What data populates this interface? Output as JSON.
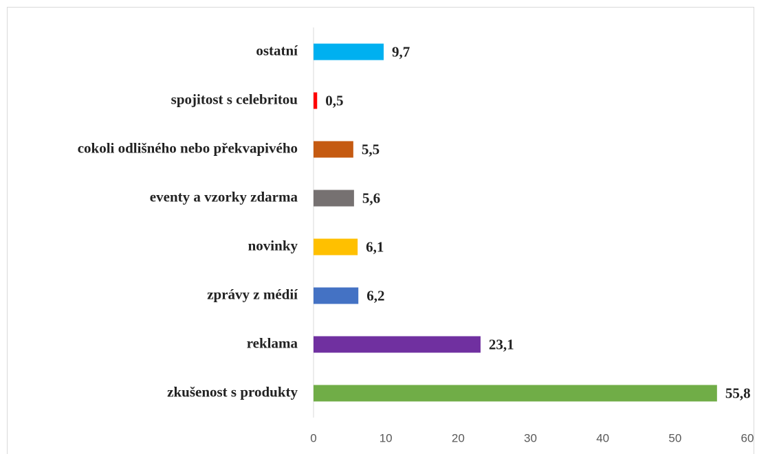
{
  "chart_data": {
    "type": "bar",
    "orientation": "horizontal",
    "categories": [
      "ostatní",
      "spojitost s celebritou",
      "cokoli odlišného nebo překvapivého",
      "eventy a vzorky zdarma",
      "novinky",
      "zprávy z médií",
      "reklama",
      "zkušenost s produkty"
    ],
    "values": [
      9.7,
      0.5,
      5.5,
      5.6,
      6.1,
      6.2,
      23.1,
      55.8
    ],
    "value_labels": [
      "9,7",
      "0,5",
      "5,5",
      "5,6",
      "6,1",
      "6,2",
      "23,1",
      "55,8"
    ],
    "colors": [
      "#00b0f0",
      "#ff0000",
      "#c55a11",
      "#767171",
      "#ffc000",
      "#4472c4",
      "#7030a0",
      "#70ad47"
    ],
    "xlim": [
      0,
      60
    ],
    "xticks": [
      0,
      10,
      20,
      30,
      40,
      50,
      60
    ],
    "grid": false
  }
}
